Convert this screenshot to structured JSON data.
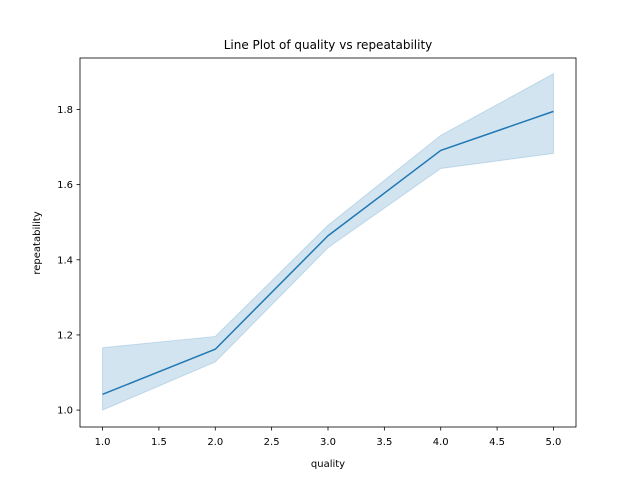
{
  "chart_data": {
    "type": "line",
    "title": "Line Plot of quality vs repeatability",
    "xlabel": "quality",
    "ylabel": "repeatability",
    "x": [
      1.0,
      2.0,
      3.0,
      4.0,
      5.0
    ],
    "series": [
      {
        "values": [
          1.042,
          1.162,
          1.464,
          1.691,
          1.795
        ],
        "ci_lower": [
          1.0,
          1.128,
          1.432,
          1.643,
          1.683
        ],
        "ci_upper": [
          1.166,
          1.196,
          1.492,
          1.731,
          1.895
        ],
        "color": "#1f77b4"
      }
    ],
    "xlim": [
      0.8,
      5.2
    ],
    "ylim": [
      0.955,
      1.937
    ],
    "xticks": [
      1.0,
      1.5,
      2.0,
      2.5,
      3.0,
      3.5,
      4.0,
      4.5,
      5.0
    ],
    "xtick_labels": [
      "1.0",
      "1.5",
      "2.0",
      "2.5",
      "3.0",
      "3.5",
      "4.0",
      "4.5",
      "5.0"
    ],
    "yticks": [
      1.0,
      1.2,
      1.4,
      1.6,
      1.8
    ],
    "ytick_labels": [
      "1.0",
      "1.2",
      "1.4",
      "1.6",
      "1.8"
    ],
    "grid": false,
    "legend": "none"
  }
}
